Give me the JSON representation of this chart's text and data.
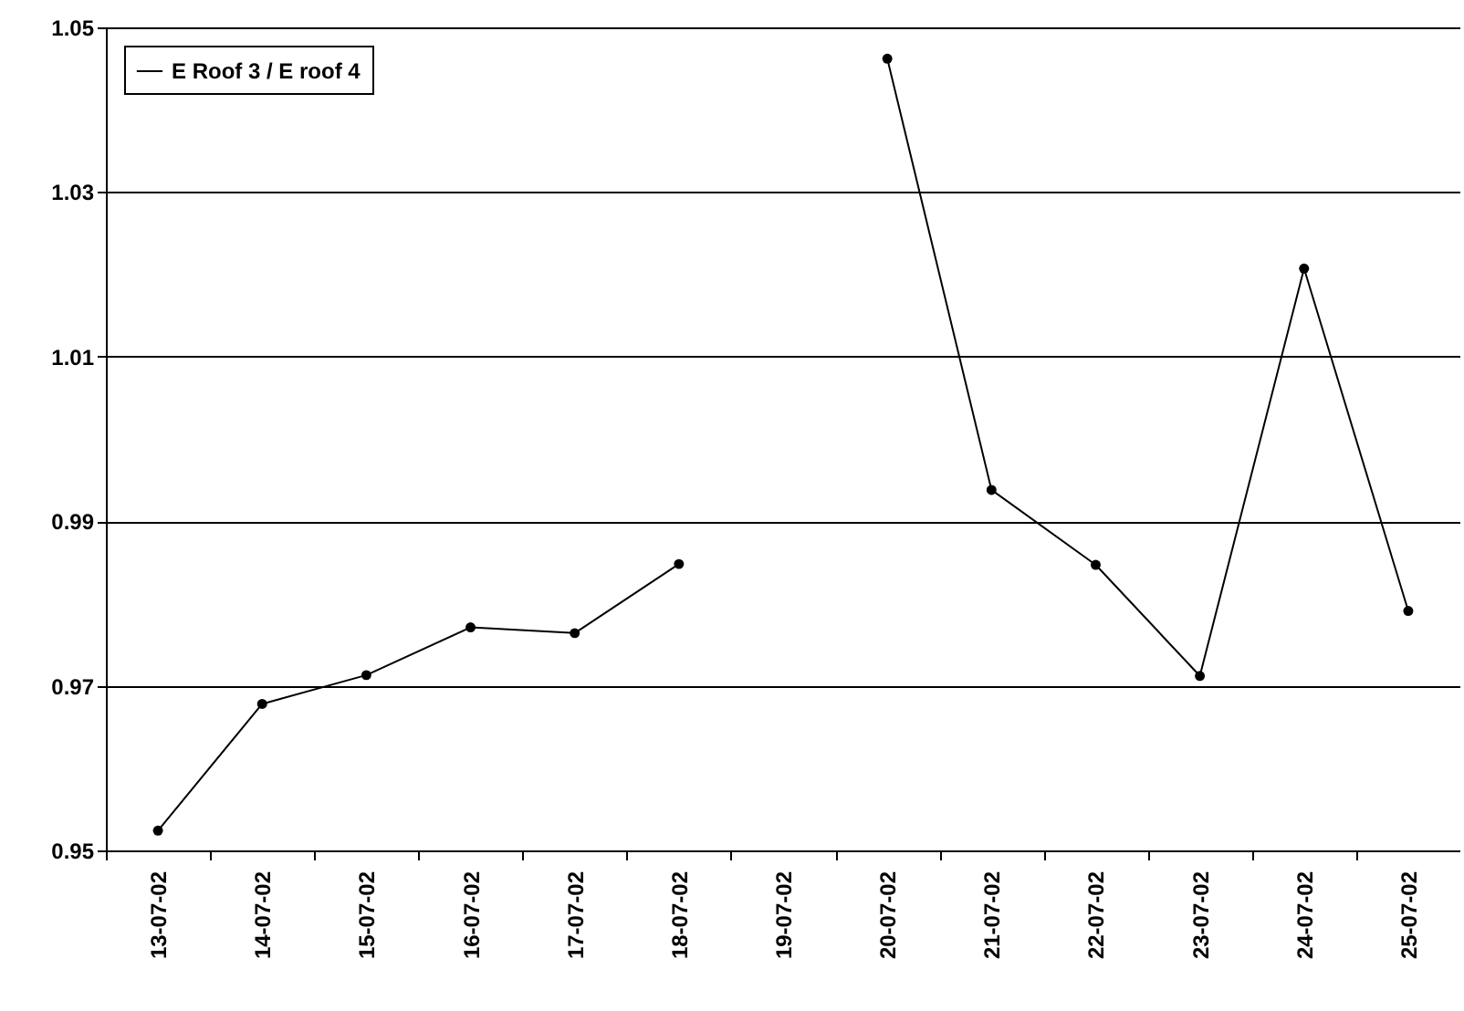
{
  "chart_data": {
    "type": "line",
    "categories": [
      "13-07-02",
      "14-07-02",
      "15-07-02",
      "16-07-02",
      "17-07-02",
      "18-07-02",
      "19-07-02",
      "20-07-02",
      "21-07-02",
      "22-07-02",
      "23-07-02",
      "24-07-02",
      "25-07-02"
    ],
    "series": [
      {
        "name": "E Roof 3 / E roof 4",
        "color": "#000000",
        "values": [
          0.9524,
          0.9678,
          0.9713,
          0.9771,
          0.9764,
          0.9848,
          null,
          1.0462,
          0.9938,
          0.9847,
          0.9712,
          1.0207,
          0.9791
        ]
      }
    ],
    "ylim": [
      0.95,
      1.05
    ],
    "yticks": [
      0.95,
      0.97,
      0.99,
      1.01,
      1.03,
      1.05
    ],
    "grid": "y",
    "legend": "top left",
    "marker": "circle",
    "line_style": "solid"
  }
}
